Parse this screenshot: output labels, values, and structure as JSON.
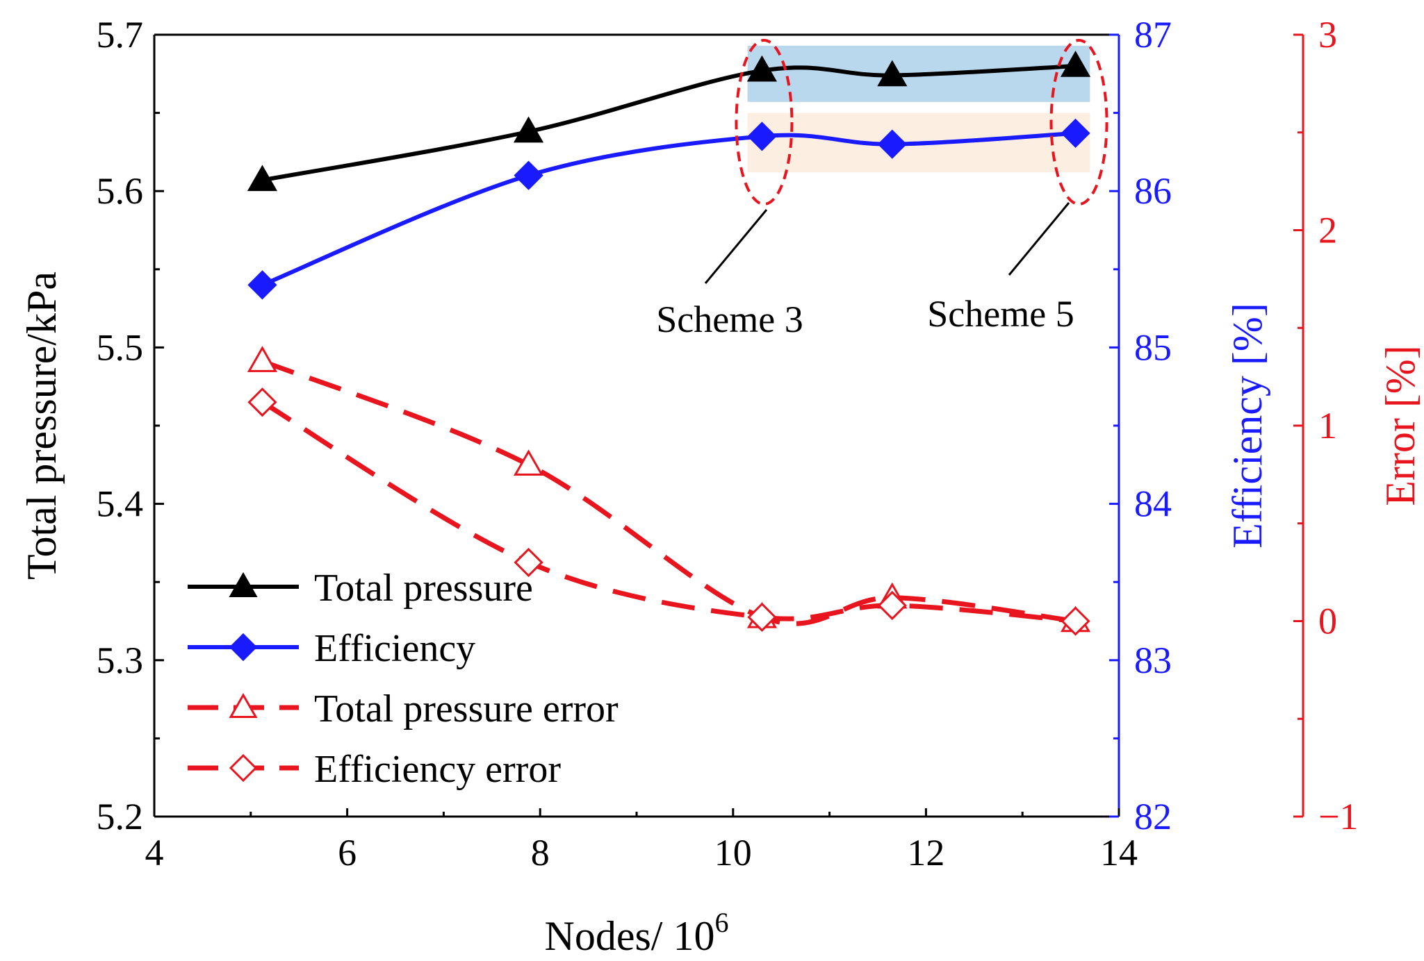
{
  "chart_data": {
    "type": "line",
    "title": "",
    "xlabel": "Nodes/ 10",
    "xlabel_superscript": "6",
    "x_ticks": [
      "4",
      "6",
      "8",
      "10",
      "12",
      "14"
    ],
    "xlim": [
      4,
      14
    ],
    "axes": {
      "left": {
        "label": "Total pressure/kPa",
        "ylim": [
          5.2,
          5.7
        ],
        "ticks": [
          "5.2",
          "5.3",
          "5.4",
          "5.5",
          "5.6",
          "5.7"
        ],
        "color": "#000000"
      },
      "right1": {
        "label": "Efficiency [%]",
        "ylim": [
          82,
          87
        ],
        "ticks": [
          "82",
          "83",
          "84",
          "85",
          "86",
          "87"
        ],
        "color": "#1a1aff"
      },
      "right2": {
        "label": "Error [%]",
        "ylim": [
          -1,
          3
        ],
        "ticks": [
          "−1",
          "0",
          "1",
          "2",
          "3"
        ],
        "color": "#e8141e"
      }
    },
    "series": [
      {
        "name": "Total pressure",
        "axis": "left",
        "x": [
          5.12,
          7.88,
          10.3,
          11.65,
          13.55
        ],
        "y": [
          5.607,
          5.638,
          5.677,
          5.674,
          5.68
        ],
        "color": "#000000",
        "marker": "triangle-filled",
        "line": "solid"
      },
      {
        "name": "Efficiency",
        "axis": "right1",
        "x": [
          5.12,
          7.88,
          10.3,
          11.65,
          13.55
        ],
        "y": [
          85.4,
          86.1,
          86.35,
          86.3,
          86.37
        ],
        "color": "#1a1aff",
        "marker": "diamond-filled",
        "line": "solid"
      },
      {
        "name": "Total pressure error",
        "axis": "right2",
        "x": [
          5.12,
          7.88,
          10.3,
          11.65,
          13.55
        ],
        "y": [
          1.33,
          0.8,
          0.02,
          0.12,
          0.0
        ],
        "color": "#e8141e",
        "marker": "triangle-open",
        "line": "dashed"
      },
      {
        "name": "Efficiency error",
        "axis": "right2",
        "x": [
          5.12,
          7.88,
          10.3,
          11.65,
          13.55
        ],
        "y": [
          1.12,
          0.3,
          0.02,
          0.08,
          0.0
        ],
        "color": "#e8141e",
        "marker": "diamond-open",
        "line": "dashed"
      }
    ],
    "highlight_bands": [
      {
        "x_range": [
          10.15,
          13.7
        ],
        "axis": "left",
        "y_range": [
          5.657,
          5.693
        ],
        "color": "#b9d8ee"
      },
      {
        "x_range": [
          10.15,
          13.7
        ],
        "axis": "right1",
        "y_range": [
          86.12,
          86.5
        ],
        "color": "#fdeee2"
      }
    ],
    "annotations": [
      {
        "text": "Scheme 3",
        "target_x": 10.3
      },
      {
        "text": "Scheme 5",
        "target_x": 13.55
      }
    ],
    "legend": {
      "position": "lower-left",
      "entries": [
        "Total pressure",
        "Efficiency",
        "Total pressure error",
        "Efficiency error"
      ]
    }
  }
}
